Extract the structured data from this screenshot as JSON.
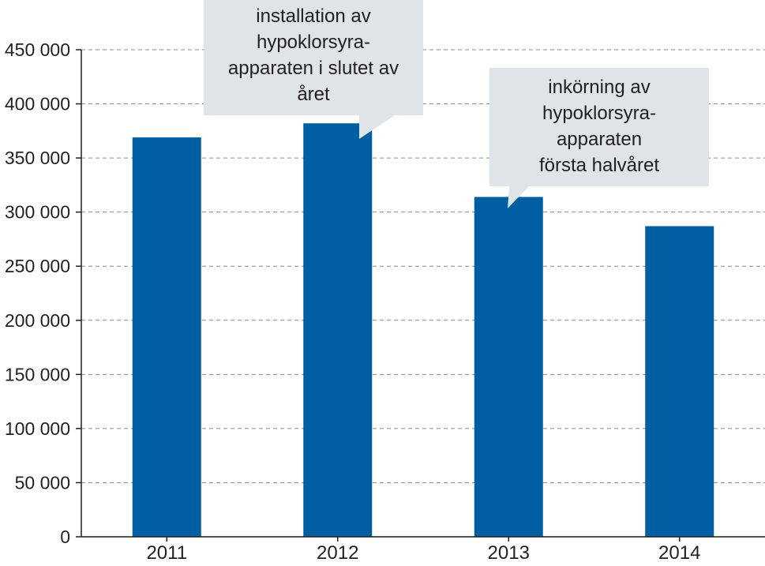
{
  "chart_data": {
    "type": "bar",
    "categories": [
      "2011",
      "2012",
      "2013",
      "2014"
    ],
    "values": [
      369000,
      382000,
      314000,
      287000
    ],
    "title": "",
    "xlabel": "",
    "ylabel": "",
    "ylim": [
      0,
      450000
    ],
    "yticks": [
      0,
      50000,
      100000,
      150000,
      200000,
      250000,
      300000,
      350000,
      400000,
      450000
    ],
    "ytick_labels": [
      "0",
      "50 000",
      "100 000",
      "150 000",
      "200 000",
      "250 000",
      "300 000",
      "350 000",
      "400 000",
      "450 000"
    ],
    "grid": "horizontal dashed",
    "bar_color": "#005ea2",
    "annotations": [
      {
        "category": "2012",
        "lines": [
          "installation av",
          "hypoklorsyra-",
          "apparaten i slutet av",
          "året"
        ]
      },
      {
        "category": "2013",
        "lines": [
          "inkörning av",
          "hypoklorsyra-",
          "apparaten",
          "första halvåret"
        ]
      }
    ]
  },
  "colors": {
    "bar": "#005ea2",
    "callout_fill": "#dfe4e9",
    "grid": "#8a8a8a",
    "axis": "#231f20",
    "text": "#231f20"
  }
}
